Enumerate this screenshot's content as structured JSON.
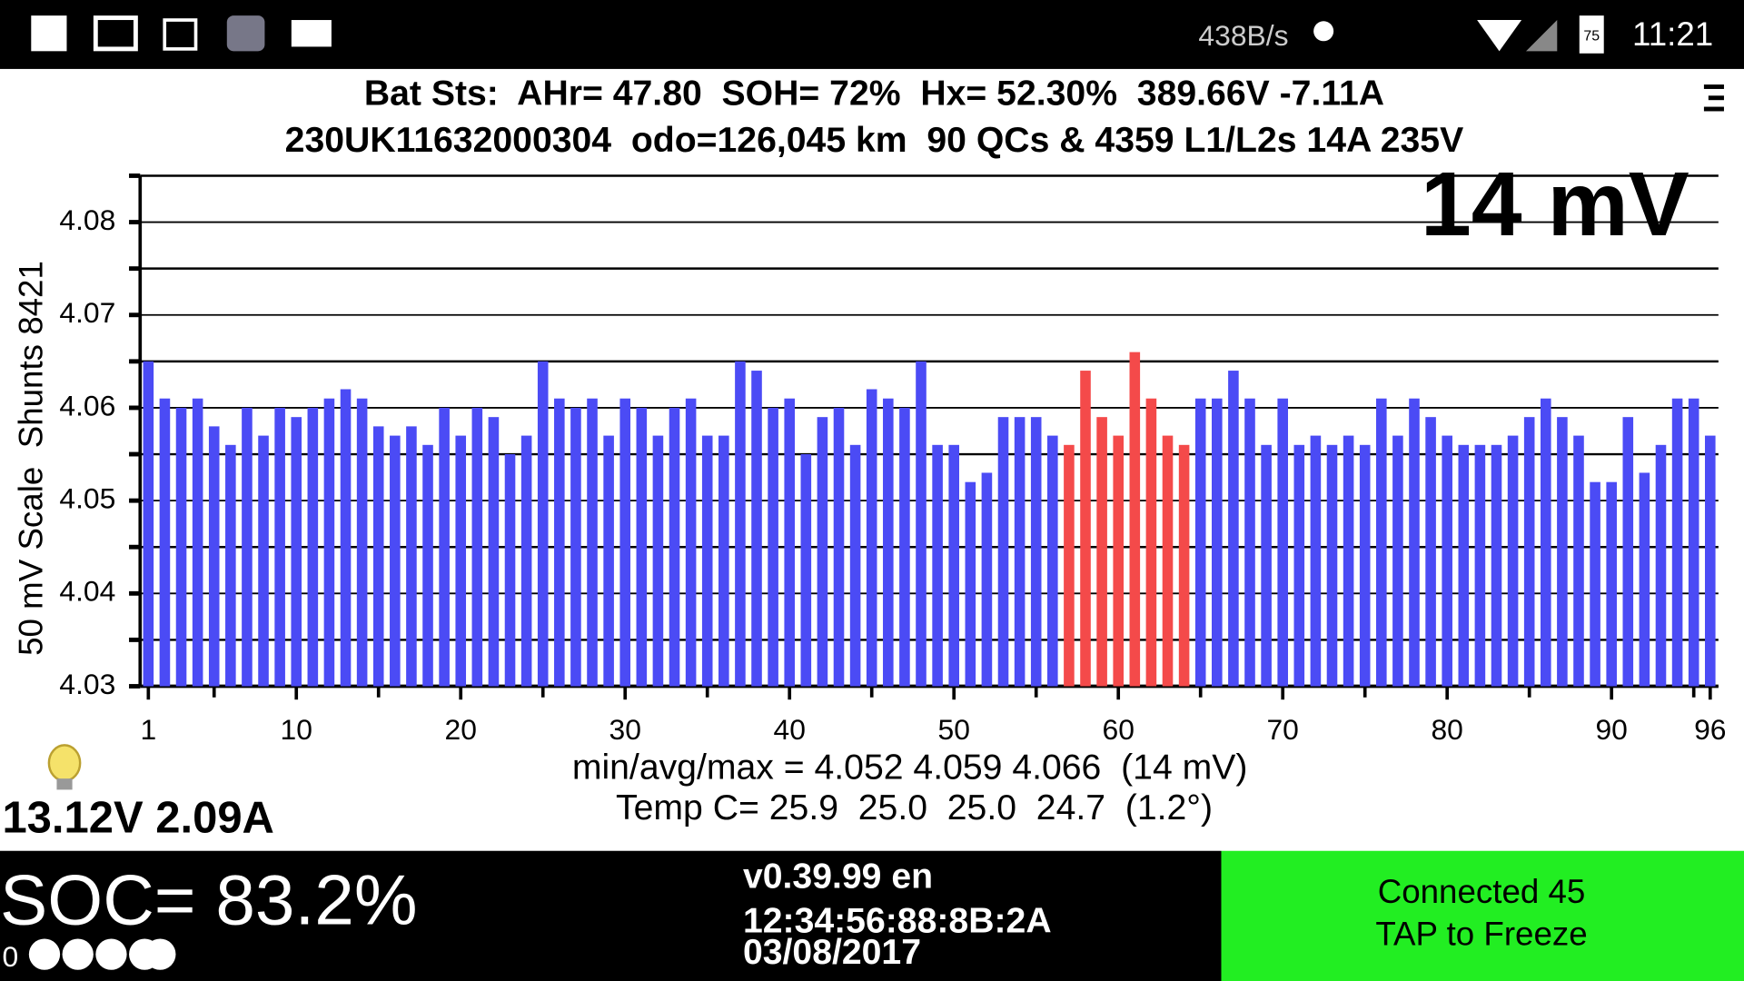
{
  "status_bar": {
    "network_speed": "438B/s",
    "battery": "75",
    "time": "11:21"
  },
  "header": {
    "line1": "Bat Sts:  AHr= 47.80  SOH= 72%  Hx= 52.30%  389.66V -7.11A",
    "line2": "230UK11632000304  odo=126,045 km  90 QCs & 4359 L1/L2s 14A 235V"
  },
  "chart_data": {
    "type": "bar",
    "annotation": "14 mV",
    "ylabel": "50 mV Scale  Shunts 8421",
    "x": [
      1,
      2,
      3,
      4,
      5,
      6,
      7,
      8,
      9,
      10,
      11,
      12,
      13,
      14,
      15,
      16,
      17,
      18,
      19,
      20,
      21,
      22,
      23,
      24,
      25,
      26,
      27,
      28,
      29,
      30,
      31,
      32,
      33,
      34,
      35,
      36,
      37,
      38,
      39,
      40,
      41,
      42,
      43,
      44,
      45,
      46,
      47,
      48,
      49,
      50,
      51,
      52,
      53,
      54,
      55,
      56,
      57,
      58,
      59,
      60,
      61,
      62,
      63,
      64,
      65,
      66,
      67,
      68,
      69,
      70,
      71,
      72,
      73,
      74,
      75,
      76,
      77,
      78,
      79,
      80,
      81,
      82,
      83,
      84,
      85,
      86,
      87,
      88,
      89,
      90,
      91,
      92,
      93,
      94,
      95,
      96
    ],
    "values": [
      4.065,
      4.061,
      4.06,
      4.061,
      4.058,
      4.056,
      4.06,
      4.057,
      4.06,
      4.059,
      4.06,
      4.061,
      4.062,
      4.061,
      4.058,
      4.057,
      4.058,
      4.056,
      4.06,
      4.057,
      4.06,
      4.059,
      4.055,
      4.057,
      4.065,
      4.061,
      4.06,
      4.061,
      4.057,
      4.061,
      4.06,
      4.057,
      4.06,
      4.061,
      4.057,
      4.057,
      4.065,
      4.064,
      4.06,
      4.061,
      4.055,
      4.059,
      4.06,
      4.056,
      4.062,
      4.061,
      4.06,
      4.065,
      4.056,
      4.056,
      4.052,
      4.053,
      4.059,
      4.059,
      4.059,
      4.057,
      4.056,
      4.064,
      4.059,
      4.057,
      4.066,
      4.061,
      4.057,
      4.056,
      4.061,
      4.061,
      4.064,
      4.061,
      4.056,
      4.061,
      4.056,
      4.057,
      4.056,
      4.057,
      4.056,
      4.061,
      4.057,
      4.061,
      4.059,
      4.057,
      4.056,
      4.056,
      4.056,
      4.057,
      4.059,
      4.061,
      4.059,
      4.057,
      4.052,
      4.052,
      4.059,
      4.053,
      4.056,
      4.061,
      4.061,
      4.057
    ],
    "colors": [
      "#4b4bf5",
      "#4b4bf5",
      "#4b4bf5",
      "#4b4bf5",
      "#4b4bf5",
      "#4b4bf5",
      "#4b4bf5",
      "#4b4bf5",
      "#4b4bf5",
      "#4b4bf5",
      "#4b4bf5",
      "#4b4bf5",
      "#4b4bf5",
      "#4b4bf5",
      "#4b4bf5",
      "#4b4bf5",
      "#4b4bf5",
      "#4b4bf5",
      "#4b4bf5",
      "#4b4bf5",
      "#4b4bf5",
      "#4b4bf5",
      "#4b4bf5",
      "#4b4bf5",
      "#4b4bf5",
      "#4b4bf5",
      "#4b4bf5",
      "#4b4bf5",
      "#4b4bf5",
      "#4b4bf5",
      "#4b4bf5",
      "#4b4bf5",
      "#4b4bf5",
      "#4b4bf5",
      "#4b4bf5",
      "#4b4bf5",
      "#4b4bf5",
      "#4b4bf5",
      "#4b4bf5",
      "#4b4bf5",
      "#4b4bf5",
      "#4b4bf5",
      "#4b4bf5",
      "#4b4bf5",
      "#4b4bf5",
      "#4b4bf5",
      "#4b4bf5",
      "#4b4bf5",
      "#4b4bf5",
      "#4b4bf5",
      "#4b4bf5",
      "#4b4bf5",
      "#4b4bf5",
      "#4b4bf5",
      "#4b4bf5",
      "#4b4bf5",
      "#f44a4a",
      "#f44a4a",
      "#f44a4a",
      "#f44a4a",
      "#f44a4a",
      "#f44a4a",
      "#f44a4a",
      "#f44a4a",
      "#4b4bf5",
      "#4b4bf5",
      "#4b4bf5",
      "#4b4bf5",
      "#4b4bf5",
      "#4b4bf5",
      "#4b4bf5",
      "#4b4bf5",
      "#4b4bf5",
      "#4b4bf5",
      "#4b4bf5",
      "#4b4bf5",
      "#4b4bf5",
      "#4b4bf5",
      "#4b4bf5",
      "#4b4bf5",
      "#4b4bf5",
      "#4b4bf5",
      "#4b4bf5",
      "#4b4bf5",
      "#4b4bf5",
      "#4b4bf5",
      "#4b4bf5",
      "#4b4bf5",
      "#4b4bf5",
      "#4b4bf5",
      "#4b4bf5",
      "#4b4bf5",
      "#4b4bf5",
      "#4b4bf5",
      "#4b4bf5",
      "#4b4bf5"
    ],
    "xlim": [
      0.5,
      96.5
    ],
    "xticks": [
      1,
      10,
      20,
      30,
      40,
      50,
      60,
      70,
      80,
      90,
      96
    ],
    "xminorticks": [
      5,
      15,
      25,
      35,
      45,
      55,
      65,
      75,
      85,
      95
    ],
    "ylim": [
      4.03,
      4.085
    ],
    "yticks": [
      4.03,
      4.04,
      4.05,
      4.06,
      4.07,
      4.08
    ],
    "yminorticks": [
      4.035,
      4.045,
      4.055,
      4.065,
      4.075,
      4.085
    ],
    "grid": true
  },
  "summary": {
    "min_avg_max": "min/avg/max = 4.052 4.059 4.066  (14 mV)",
    "temp": "Temp C= 25.9  25.0  25.0  24.7  (1.2°)"
  },
  "aux_battery": "13.12V 2.09A",
  "footer": {
    "soc": "SOC= 83.2%",
    "dots_label": "0",
    "version": "v0.39.99 en",
    "mac": "12:34:56:88:8B:2A",
    "date": "03/08/2017",
    "status_line1": "Connected 45",
    "status_line2": "TAP to Freeze"
  }
}
